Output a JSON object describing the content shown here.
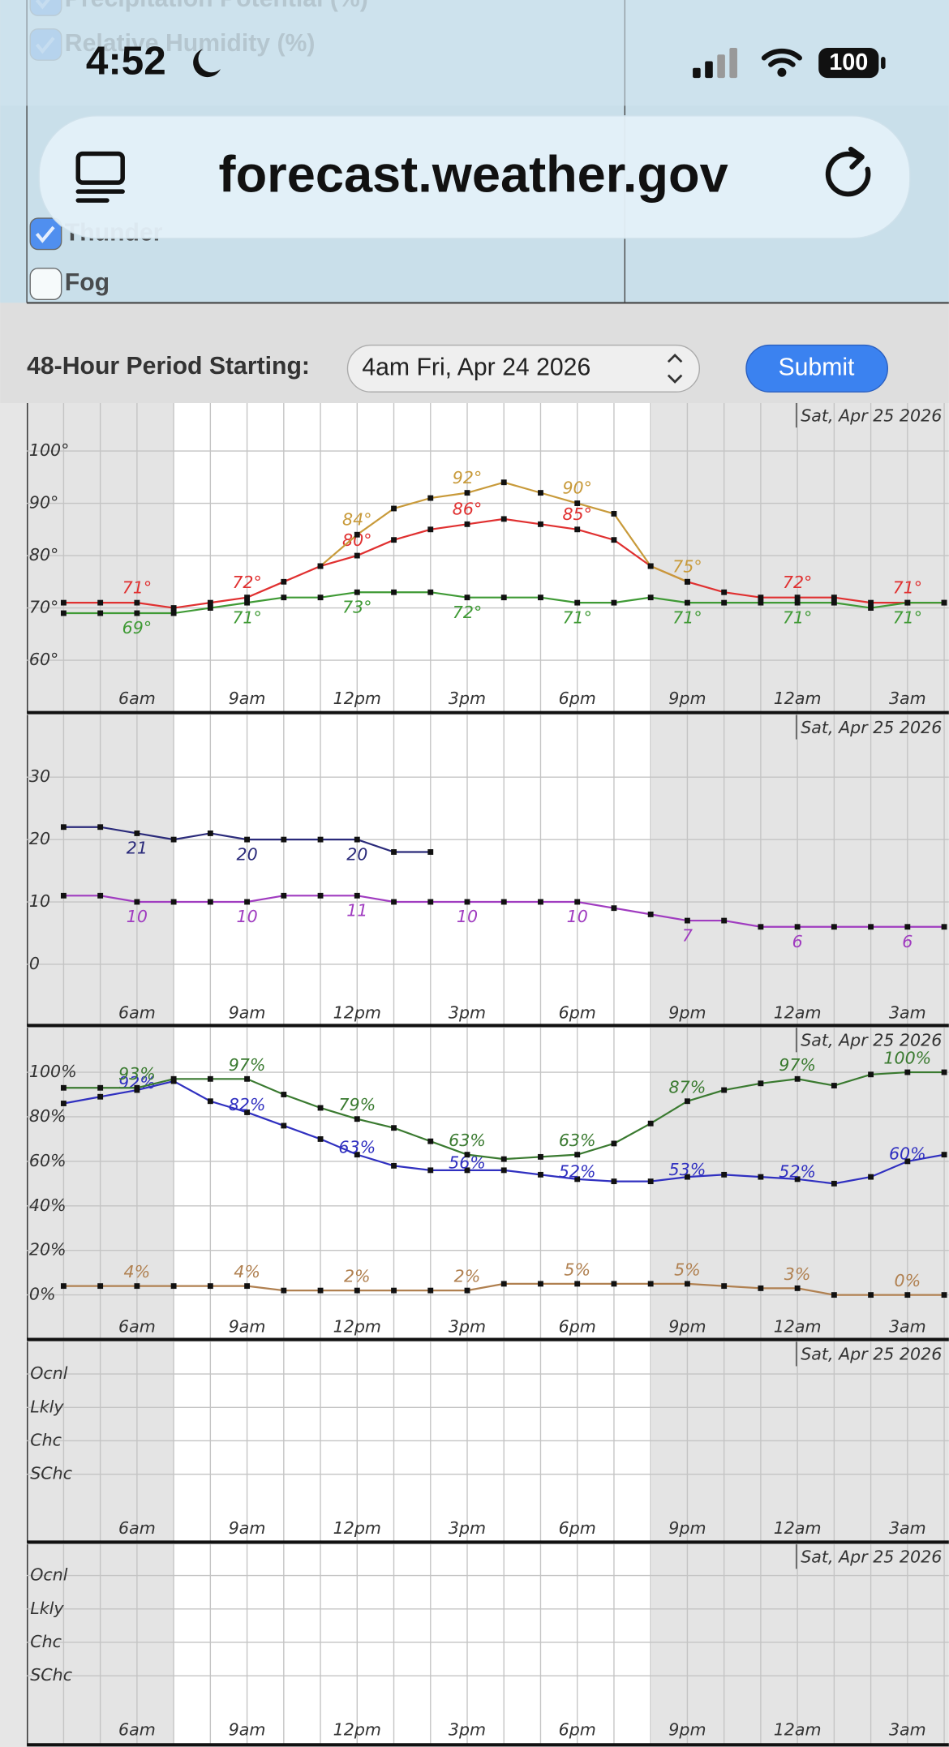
{
  "status_bar": {
    "time": "4:52",
    "battery": "100"
  },
  "browser": {
    "url": "forecast.weather.gov"
  },
  "options": {
    "items": [
      {
        "label": "Precipitation Potential (%)",
        "checked": true
      },
      {
        "label": "Relative Humidity (%)",
        "checked": true
      },
      {
        "label": "Thunder",
        "checked": true
      },
      {
        "label": "Fog",
        "checked": false
      }
    ]
  },
  "form": {
    "label": "48-Hour Period Starting:",
    "period": "4am Fri, Apr 24 2026",
    "submit": "Submit"
  },
  "graphs": {
    "date_label": "Sat, Apr 25 2026",
    "categories": [
      null,
      null,
      "6am",
      null,
      null,
      "9am",
      null,
      null,
      "12pm",
      null,
      null,
      "3pm",
      null,
      null,
      "6pm",
      null,
      null,
      "9pm",
      null,
      null,
      "12am",
      null,
      null,
      "3am",
      null
    ],
    "panels": [
      {
        "ylim": [
          55,
          105
        ],
        "yticks": [
          {
            "value": 60,
            "label": "60°"
          },
          {
            "value": 70,
            "label": "70°"
          },
          {
            "value": 80,
            "label": "80°"
          },
          {
            "value": 90,
            "label": "90°"
          },
          {
            "value": 100,
            "label": "100°"
          }
        ],
        "series": [
          {
            "color": "#e03030",
            "values": [
              71,
              71,
              71,
              70,
              71,
              72,
              75,
              78,
              80,
              83,
              85,
              86,
              87,
              86,
              85,
              83,
              78,
              75,
              73,
              72,
              72,
              72,
              71,
              71,
              71
            ],
            "value_labels": [
              null,
              null,
              "71°",
              null,
              null,
              "72°",
              null,
              null,
              "80°",
              null,
              null,
              "86°",
              null,
              null,
              "85°",
              null,
              null,
              null,
              null,
              null,
              "72°",
              null,
              null,
              "71°",
              null
            ]
          },
          {
            "color": "#c89a3a",
            "values": [
              null,
              null,
              null,
              null,
              null,
              null,
              null,
              78,
              84,
              89,
              91,
              92,
              94,
              92,
              90,
              88,
              78,
              75,
              null,
              null,
              null,
              null,
              null,
              null,
              null
            ],
            "value_labels": [
              null,
              null,
              null,
              null,
              null,
              null,
              null,
              null,
              "84°",
              null,
              null,
              "92°",
              null,
              null,
              "90°",
              null,
              null,
              "75°",
              null,
              null,
              null,
              null,
              null,
              null,
              null
            ]
          },
          {
            "color": "#3f9a35",
            "values": [
              69,
              69,
              69,
              69,
              70,
              71,
              72,
              72,
              73,
              73,
              73,
              72,
              72,
              72,
              71,
              71,
              72,
              71,
              71,
              71,
              71,
              71,
              70,
              71,
              71
            ],
            "value_labels": [
              null,
              null,
              "69°",
              null,
              null,
              "71°",
              null,
              null,
              "73°",
              null,
              null,
              "72°",
              null,
              null,
              "71°",
              null,
              null,
              "71°",
              null,
              null,
              "71°",
              null,
              null,
              "71°",
              null
            ]
          }
        ]
      },
      {
        "ylim": [
          -5,
          35
        ],
        "yticks": [
          0,
          10,
          20,
          30
        ],
        "series": [
          {
            "color": "#2a2a7a",
            "values": [
              22,
              22,
              21,
              20,
              21,
              20,
              20,
              20,
              20,
              18,
              18,
              null,
              null,
              null,
              null,
              null,
              null,
              null,
              null,
              null,
              null,
              null,
              null,
              null,
              null
            ],
            "value_labels": [
              null,
              null,
              "21",
              null,
              null,
              "20",
              null,
              null,
              "20",
              null,
              null,
              null,
              null,
              null,
              null,
              null,
              null,
              null,
              null,
              null,
              null,
              null,
              null,
              null,
              null
            ]
          },
          {
            "color": "#a03cc0",
            "values": [
              11,
              11,
              10,
              10,
              10,
              10,
              11,
              11,
              11,
              10,
              10,
              10,
              10,
              10,
              10,
              9,
              8,
              7,
              7,
              6,
              6,
              6,
              6,
              6,
              6
            ],
            "value_labels": [
              null,
              null,
              "10",
              null,
              null,
              "10",
              null,
              null,
              "11",
              null,
              null,
              "10",
              null,
              null,
              "10",
              null,
              null,
              "7",
              null,
              null,
              "6",
              null,
              null,
              "6",
              null
            ]
          }
        ]
      },
      {
        "ylim": [
          -5,
          105
        ],
        "yticks": [
          {
            "value": 0,
            "label": "0%"
          },
          {
            "value": 20,
            "label": "20%"
          },
          {
            "value": 40,
            "label": "40%"
          },
          {
            "value": 60,
            "label": "60%"
          },
          {
            "value": 80,
            "label": "80%"
          },
          {
            "value": 100,
            "label": "100%"
          }
        ],
        "series": [
          {
            "color": "#3030c0",
            "values": [
              86,
              89,
              92,
              96,
              87,
              82,
              76,
              70,
              63,
              58,
              56,
              56,
              56,
              54,
              52,
              51,
              51,
              53,
              54,
              53,
              52,
              50,
              53,
              60,
              63
            ],
            "value_labels": [
              null,
              null,
              "92%",
              null,
              null,
              "82%",
              null,
              null,
              "63%",
              null,
              null,
              "56%",
              null,
              null,
              "52%",
              null,
              null,
              "53%",
              null,
              null,
              "52%",
              null,
              null,
              "60%",
              null
            ]
          },
          {
            "color": "#3a7a30",
            "values": [
              93,
              93,
              93,
              97,
              97,
              97,
              90,
              84,
              79,
              75,
              69,
              63,
              61,
              62,
              63,
              68,
              77,
              87,
              92,
              95,
              97,
              94,
              99,
              100,
              100
            ],
            "value_labels": [
              null,
              null,
              "93%",
              null,
              null,
              "97%",
              null,
              null,
              "79%",
              null,
              null,
              "63%",
              null,
              null,
              "63%",
              null,
              null,
              "87%",
              null,
              null,
              "97%",
              null,
              null,
              "100%",
              null
            ]
          },
          {
            "color": "#b08050",
            "values": [
              4,
              4,
              4,
              4,
              4,
              4,
              2,
              2,
              2,
              2,
              2,
              2,
              5,
              5,
              5,
              5,
              5,
              5,
              4,
              3,
              3,
              0,
              0,
              0,
              0
            ],
            "value_labels": [
              null,
              null,
              "4%",
              null,
              null,
              "4%",
              null,
              null,
              "2%",
              null,
              null,
              "2%",
              null,
              null,
              "5%",
              null,
              null,
              "5%",
              null,
              null,
              "3%",
              null,
              null,
              "0%",
              null
            ]
          }
        ]
      },
      {
        "levels": [
          "Ocnl",
          "Lkly",
          "Chc",
          "SChc"
        ]
      },
      {
        "levels": [
          "Ocnl",
          "Lkly",
          "Chc",
          "SChc"
        ]
      }
    ]
  }
}
